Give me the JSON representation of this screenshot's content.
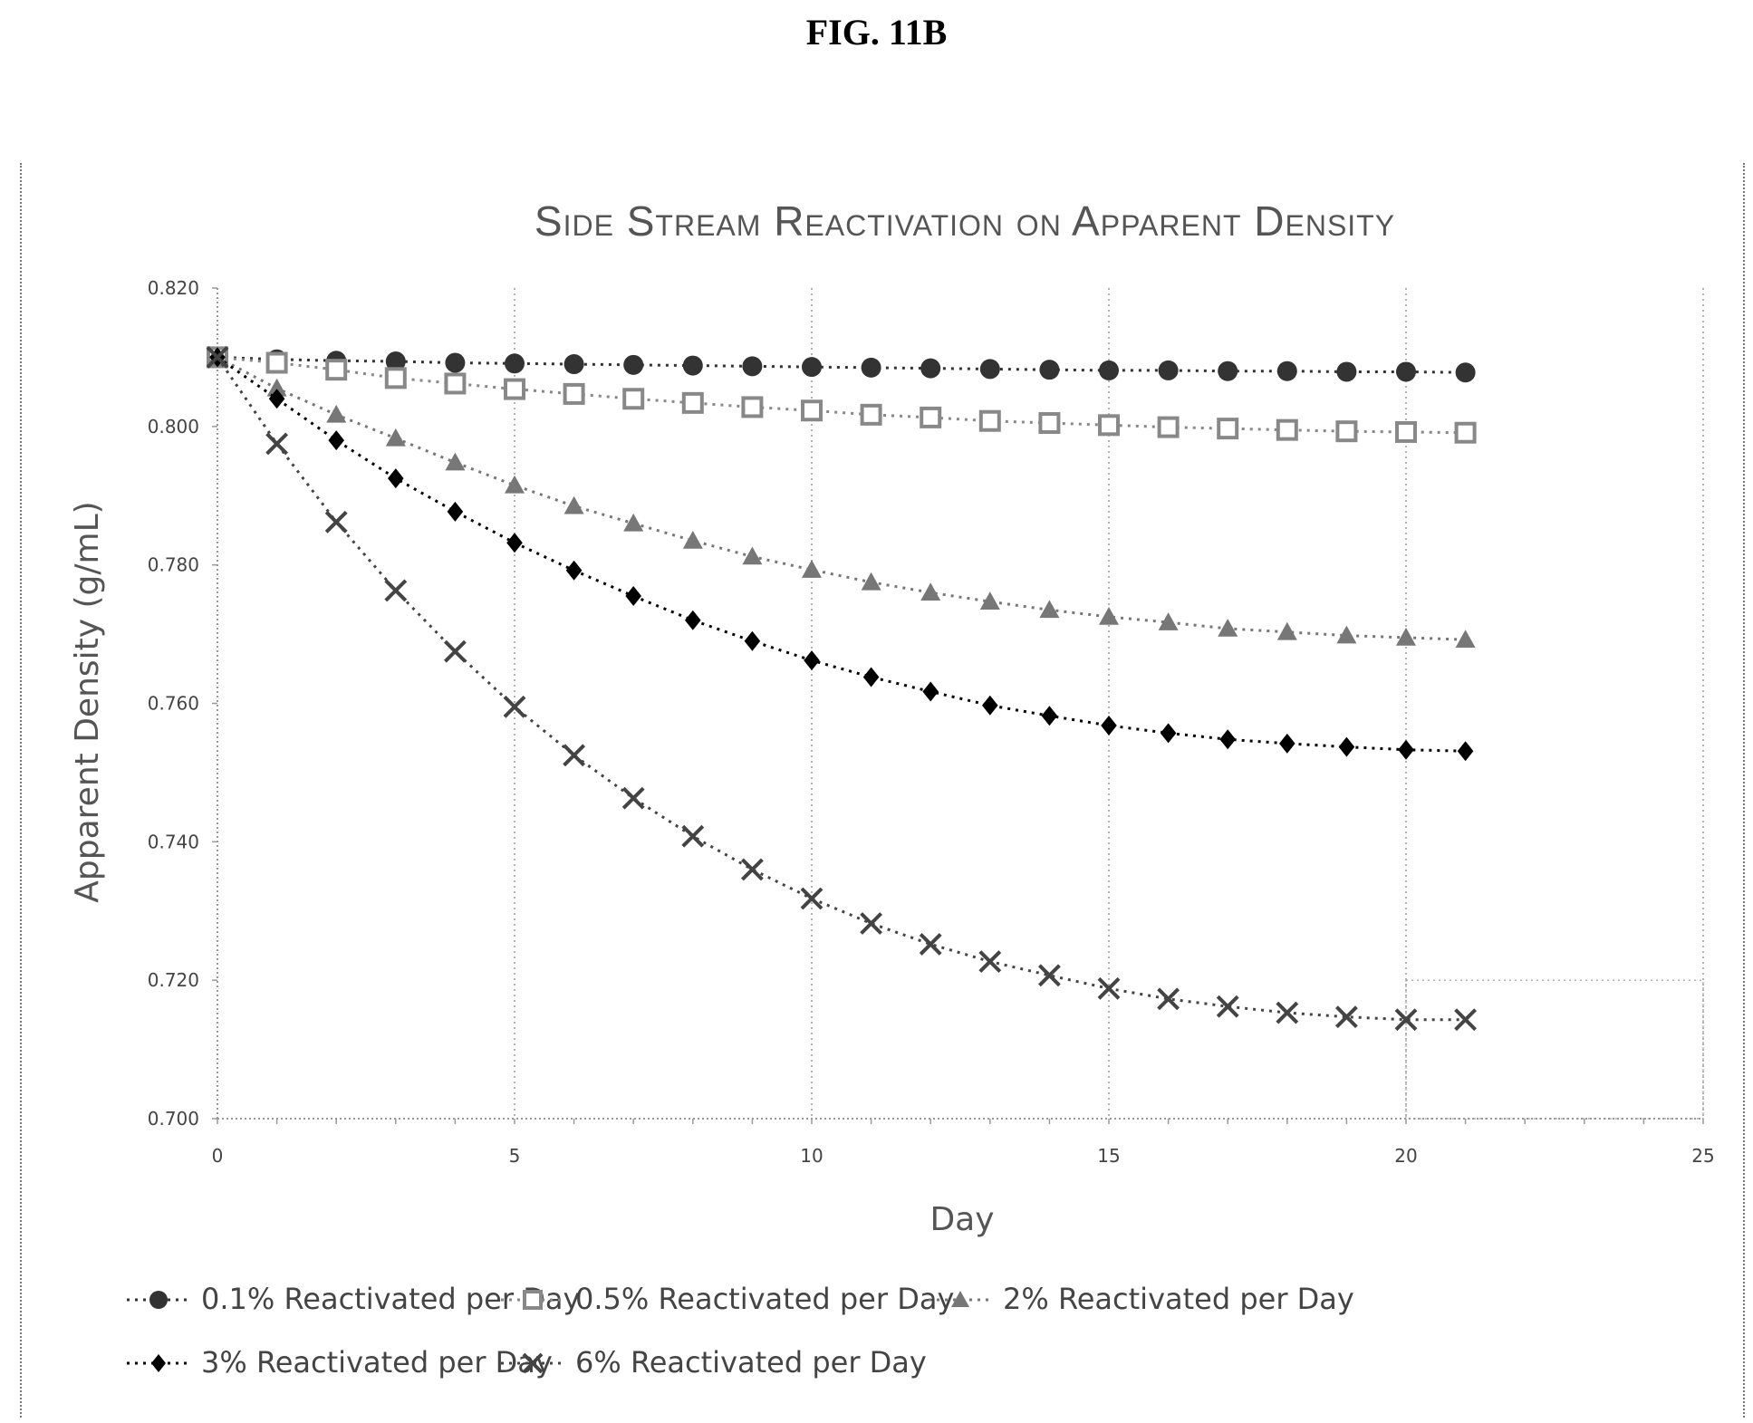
{
  "figure_label": "FIG. 11B",
  "chart_data": {
    "type": "line",
    "title": "Side Stream Reactivation on Apparent Density",
    "xlabel": "Day",
    "ylabel": "Apparent Density (g/mL)",
    "xlim": [
      0,
      25
    ],
    "ylim": [
      0.7,
      0.82
    ],
    "xticks": [
      "0",
      "5",
      "10",
      "15",
      "20",
      "25"
    ],
    "yticks": [
      "0.700",
      "0.720",
      "0.740",
      "0.760",
      "0.780",
      "0.800",
      "0.820"
    ],
    "grid": "vertical",
    "legend_position": "bottom",
    "x": [
      0,
      1,
      2,
      3,
      4,
      5,
      6,
      7,
      8,
      9,
      10,
      11,
      12,
      13,
      14,
      15,
      16,
      17,
      18,
      19,
      20,
      21
    ],
    "series": [
      {
        "name": "0.1% Reactivated per Day",
        "marker": "circle",
        "color": "#333333",
        "values": [
          0.81,
          0.8097,
          0.8095,
          0.8094,
          0.8092,
          0.8091,
          0.809,
          0.8089,
          0.8088,
          0.8087,
          0.8086,
          0.8085,
          0.8084,
          0.8083,
          0.8082,
          0.8081,
          0.8081,
          0.808,
          0.808,
          0.8079,
          0.8079,
          0.8078
        ]
      },
      {
        "name": "0.5% Reactivated per Day",
        "marker": "square-open",
        "color": "#888888",
        "values": [
          0.81,
          0.8092,
          0.8082,
          0.807,
          0.8062,
          0.8054,
          0.8047,
          0.804,
          0.8034,
          0.8028,
          0.8023,
          0.8017,
          0.8013,
          0.8008,
          0.8005,
          0.8002,
          0.7999,
          0.7997,
          0.7995,
          0.7993,
          0.7992,
          0.7991
        ]
      },
      {
        "name": "2% Reactivated per Day",
        "marker": "triangle",
        "color": "#777777",
        "values": [
          0.81,
          0.8055,
          0.8017,
          0.7983,
          0.7948,
          0.7915,
          0.7885,
          0.786,
          0.7835,
          0.7812,
          0.7793,
          0.7775,
          0.776,
          0.7747,
          0.7735,
          0.7725,
          0.7717,
          0.7708,
          0.7703,
          0.7698,
          0.7695,
          0.7692
        ]
      },
      {
        "name": "3% Reactivated per Day",
        "marker": "diamond",
        "color": "#000000",
        "values": [
          0.81,
          0.804,
          0.798,
          0.7925,
          0.7877,
          0.7832,
          0.7792,
          0.7755,
          0.772,
          0.769,
          0.7662,
          0.7638,
          0.7617,
          0.7597,
          0.7582,
          0.7568,
          0.7557,
          0.7548,
          0.7542,
          0.7537,
          0.7533,
          0.7531
        ]
      },
      {
        "name": "6% Reactivated per Day",
        "marker": "x",
        "color": "#444444",
        "values": [
          0.81,
          0.7975,
          0.7862,
          0.7763,
          0.7675,
          0.7595,
          0.7525,
          0.7463,
          0.7408,
          0.736,
          0.7318,
          0.7282,
          0.7252,
          0.7227,
          0.7207,
          0.7188,
          0.7173,
          0.7162,
          0.7153,
          0.7147,
          0.7143,
          0.7143
        ]
      }
    ]
  }
}
